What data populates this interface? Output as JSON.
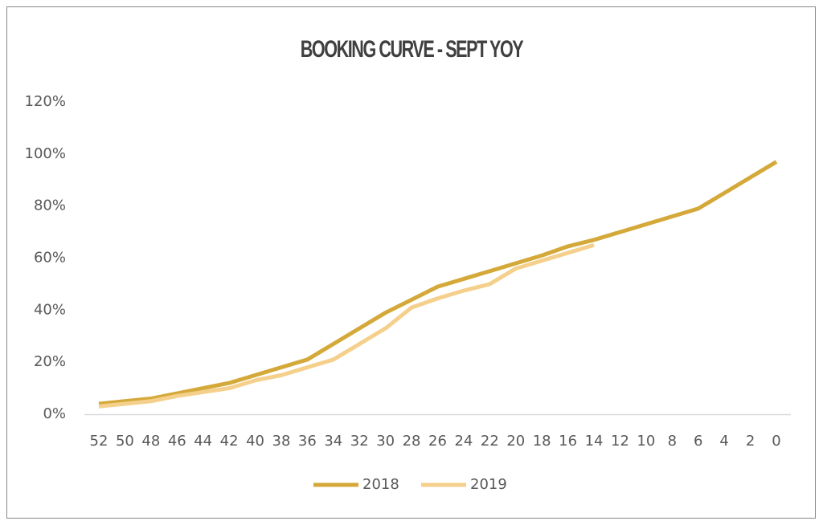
{
  "chart_data": {
    "type": "line",
    "title": "BOOKING CURVE - SEPT YOY",
    "categories": [
      "52",
      "50",
      "48",
      "46",
      "44",
      "42",
      "40",
      "38",
      "36",
      "34",
      "32",
      "30",
      "28",
      "26",
      "24",
      "22",
      "20",
      "18",
      "16",
      "14",
      "12",
      "10",
      "8",
      "6",
      "4",
      "2",
      "0"
    ],
    "series": [
      {
        "name": "2018",
        "color": "#d4a93a",
        "values": [
          4,
          5,
          6,
          8,
          10,
          12,
          15,
          18,
          21,
          27,
          33,
          39,
          44,
          49,
          52,
          55,
          58,
          61,
          64.5,
          67,
          70,
          73,
          76,
          79,
          85,
          91,
          97
        ]
      },
      {
        "name": "2019",
        "color": "#f5d08c",
        "values": [
          3,
          4,
          5,
          7,
          8.5,
          10,
          13,
          15,
          18,
          21,
          27,
          33,
          41,
          44.5,
          47.5,
          50,
          56,
          59,
          62,
          65,
          null,
          null,
          null,
          null,
          null,
          null,
          null
        ]
      }
    ],
    "ylim": [
      0,
      120
    ],
    "yticks": [
      {
        "value": 0,
        "label": "0%"
      },
      {
        "value": 20,
        "label": "20%"
      },
      {
        "value": 40,
        "label": "40%"
      },
      {
        "value": 60,
        "label": "60%"
      },
      {
        "value": 80,
        "label": "80%"
      },
      {
        "value": 100,
        "label": "100%"
      },
      {
        "value": 120,
        "label": "120%"
      }
    ],
    "grid": false,
    "legend": "bottom"
  }
}
